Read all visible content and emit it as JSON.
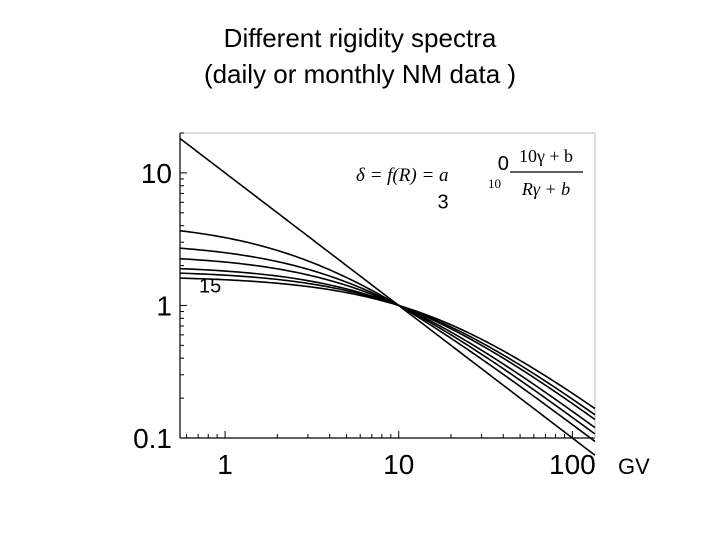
{
  "slide": {
    "title_line1": "Different rigidity spectra",
    "title_line2": "(daily or monthly NM data )"
  },
  "chart_data": {
    "type": "line",
    "title": "",
    "xlabel": "GV",
    "ylabel": "",
    "x_scale": "log",
    "y_scale": "log",
    "xlim": [
      0.55,
      135
    ],
    "ylim": [
      0.1,
      20
    ],
    "x_ticks": [
      {
        "value": 1,
        "label": "1"
      },
      {
        "value": 10,
        "label": "10"
      },
      {
        "value": 100,
        "label": "100"
      }
    ],
    "y_ticks": [
      {
        "value": 0.1,
        "label": "0.1"
      },
      {
        "value": 1,
        "label": "1"
      },
      {
        "value": 10,
        "label": "10"
      }
    ],
    "formula": {
      "lhs": "δ = f(R) = a",
      "lhs_sub": "10",
      "numerator": "10γ + b",
      "denominator": "Rγ + b"
    },
    "curve_labels": [
      {
        "text": "0",
        "anchor_b": 0,
        "x": 40,
        "y": 10.5
      },
      {
        "text": "3",
        "anchor_b": 3,
        "x": 18,
        "y": 5.4
      },
      {
        "text": "15",
        "anchor_b": 15,
        "x": 0.82,
        "y": 1.25
      }
    ],
    "gamma": 1,
    "series": [
      {
        "b": 0,
        "points": [
          [
            0.55,
            18.2
          ],
          [
            1,
            10
          ],
          [
            3,
            3.33
          ],
          [
            10,
            1
          ],
          [
            30,
            0.333
          ],
          [
            100,
            0.1
          ],
          [
            135,
            0.074
          ]
        ]
      },
      {
        "b": 3,
        "points": [
          [
            0.55,
            3.69
          ],
          [
            1,
            3.25
          ],
          [
            3,
            2.17
          ],
          [
            10,
            1
          ],
          [
            30,
            0.394
          ],
          [
            100,
            0.126
          ],
          [
            135,
            0.095
          ]
        ]
      },
      {
        "b": 5,
        "points": [
          [
            0.55,
            2.71
          ],
          [
            1,
            2.5
          ],
          [
            3,
            1.88
          ],
          [
            10,
            1
          ],
          [
            30,
            0.429
          ],
          [
            100,
            0.143
          ],
          [
            135,
            0.107
          ]
        ]
      },
      {
        "b": 7,
        "points": [
          [
            0.55,
            2.25
          ],
          [
            1,
            2.12
          ],
          [
            3,
            1.7
          ],
          [
            10,
            1
          ],
          [
            30,
            0.459
          ],
          [
            100,
            0.159
          ],
          [
            135,
            0.12
          ]
        ]
      },
      {
        "b": 10,
        "points": [
          [
            0.55,
            1.9
          ],
          [
            1,
            1.82
          ],
          [
            3,
            1.54
          ],
          [
            10,
            1
          ],
          [
            30,
            0.5
          ],
          [
            100,
            0.182
          ],
          [
            135,
            0.139
          ]
        ]
      },
      {
        "b": 12,
        "points": [
          [
            0.55,
            1.75
          ],
          [
            1,
            1.69
          ],
          [
            3,
            1.47
          ],
          [
            10,
            1
          ],
          [
            30,
            0.524
          ],
          [
            100,
            0.196
          ],
          [
            135,
            0.15
          ]
        ]
      },
      {
        "b": 15,
        "points": [
          [
            0.55,
            1.61
          ],
          [
            1,
            1.56
          ],
          [
            3,
            1.38
          ],
          [
            10,
            1
          ],
          [
            30,
            0.555
          ],
          [
            100,
            0.217
          ],
          [
            135,
            0.167
          ]
        ]
      }
    ]
  }
}
